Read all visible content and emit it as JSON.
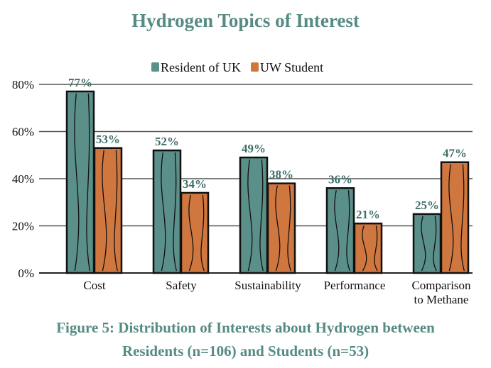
{
  "chart_data": {
    "type": "bar",
    "title": "Hydrogen Topics of Interest",
    "caption_lines": [
      "Figure 5: Distribution of Interests about Hydrogen between",
      "Residents (n=106) and Students (n=53)"
    ],
    "categories": [
      [
        "Cost"
      ],
      [
        "Safety"
      ],
      [
        "Sustainability"
      ],
      [
        "Performance"
      ],
      [
        "Comparison",
        "to Methane"
      ]
    ],
    "series": [
      {
        "name": "Resident of UK",
        "color": "#5b8f89",
        "values": [
          77,
          52,
          49,
          36,
          25
        ],
        "labels": [
          "77%",
          "52%",
          "49%",
          "36%",
          "25%"
        ]
      },
      {
        "name": "UW Student",
        "color": "#d0773f",
        "values": [
          53,
          34,
          38,
          21,
          47
        ],
        "labels": [
          "53%",
          "34%",
          "38%",
          "21%",
          "47%"
        ]
      }
    ],
    "ylim": [
      0,
      80
    ],
    "yticks": [
      0,
      20,
      40,
      60,
      80
    ],
    "ytick_labels": [
      "0%",
      "20%",
      "40%",
      "60%",
      "80%"
    ],
    "grid": true,
    "legend": "top-center",
    "xlabel": "",
    "ylabel": ""
  }
}
